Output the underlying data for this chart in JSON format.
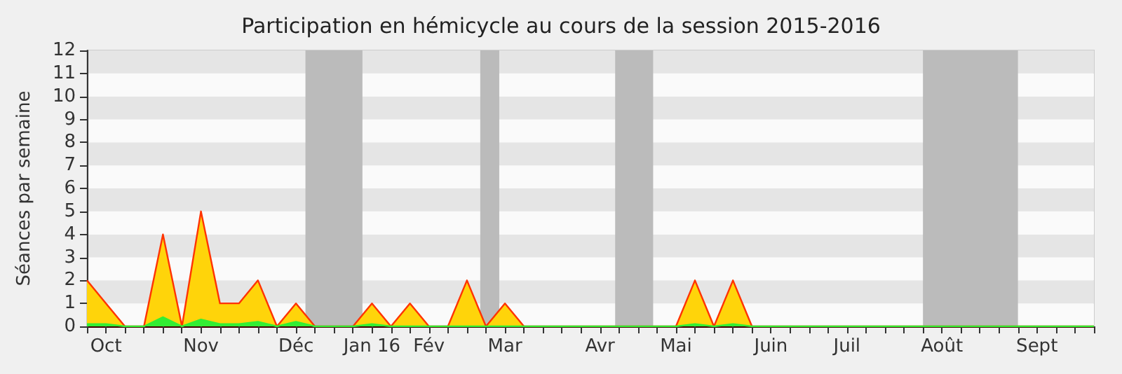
{
  "chart_data": {
    "type": "area",
    "title": "Participation en hémicycle au cours de la session 2015-2016",
    "ylabel": "Séances par semaine",
    "categories": [
      null,
      "Oct",
      null,
      null,
      null,
      null,
      "Nov",
      null,
      null,
      null,
      null,
      "Déc",
      null,
      null,
      null,
      "Jan 16",
      null,
      null,
      "Fév",
      null,
      null,
      null,
      "Mar",
      null,
      null,
      null,
      null,
      "Avr",
      null,
      null,
      null,
      "Mai",
      null,
      null,
      null,
      null,
      "Juin",
      null,
      null,
      null,
      "Juil",
      null,
      null,
      null,
      null,
      "Août",
      null,
      null,
      null,
      null,
      "Sept",
      null,
      null,
      null
    ],
    "series": [
      {
        "color": "#ffd40a",
        "values": [
          2,
          1,
          0,
          0,
          4,
          0,
          5,
          1,
          1,
          2,
          0,
          1,
          0,
          0,
          0,
          1,
          0,
          1,
          0,
          0,
          2,
          0,
          1,
          0,
          0,
          0,
          0,
          0,
          0,
          0,
          0,
          0,
          2,
          0,
          2,
          0,
          0,
          0,
          0,
          0,
          0,
          0,
          0,
          0,
          0,
          0,
          0,
          0,
          0,
          0,
          0,
          0,
          0,
          0
        ]
      },
      {
        "color": "#33ee33",
        "values": [
          0.1,
          0.1,
          0,
          0,
          0.4,
          0,
          0.3,
          0.1,
          0.1,
          0.2,
          0,
          0.2,
          0,
          0,
          0,
          0.1,
          0,
          0,
          0,
          0,
          0,
          0,
          0,
          0,
          0,
          0,
          0,
          0,
          0,
          0,
          0,
          0,
          0.1,
          0,
          0.1,
          0,
          0,
          0,
          0,
          0,
          0,
          0,
          0,
          0,
          0,
          0,
          0,
          0,
          0,
          0,
          0,
          0,
          0,
          0
        ]
      }
    ],
    "ylim": [
      0,
      12
    ],
    "yticks": [
      0,
      1,
      2,
      3,
      4,
      5,
      6,
      7,
      8,
      9,
      10,
      11,
      12
    ],
    "marker": "none"
  }
}
